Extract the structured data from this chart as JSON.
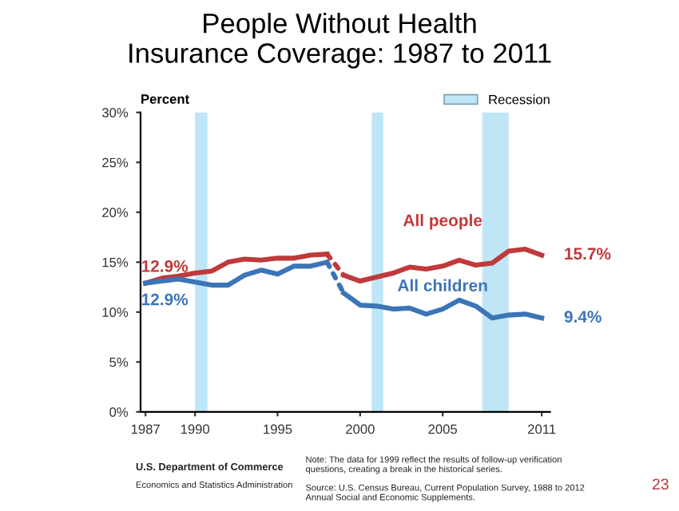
{
  "chart_data": {
    "type": "line",
    "title": "People Without Health\nInsurance Coverage: 1987 to 2011",
    "ylabel": "Percent",
    "series": [
      {
        "color": "#c0393b",
        "x": [
          1987,
          1988,
          1989,
          1990,
          1991,
          1992,
          1993,
          1994,
          1995,
          1996,
          1997,
          1998
        ],
        "values": [
          12.9,
          13.4,
          13.6,
          13.9,
          14.1,
          15.0,
          15.3,
          15.2,
          15.4,
          15.4,
          15.7,
          15.8
        ],
        "value_labels": [
          "12.9%",
          null,
          null,
          null,
          null,
          null,
          null,
          null,
          null,
          null,
          null,
          null
        ]
      },
      {
        "color": "#c0393b",
        "x": [
          1998,
          1999
        ],
        "values": [
          15.8,
          13.7
        ],
        "line_style": "dotted"
      },
      {
        "name": "All people",
        "color": "#c0393b",
        "x": [
          1999,
          2000,
          2001,
          2002,
          2003,
          2004,
          2005,
          2006,
          2007,
          2008,
          2009,
          2010,
          2011
        ],
        "values": [
          13.7,
          13.1,
          13.5,
          13.9,
          14.5,
          14.3,
          14.6,
          15.2,
          14.7,
          14.9,
          16.1,
          16.3,
          15.7
        ],
        "value_labels": [
          null,
          null,
          null,
          null,
          null,
          null,
          null,
          null,
          null,
          null,
          null,
          null,
          "15.7%"
        ]
      },
      {
        "color": "#3c74b8",
        "x": [
          1987,
          1988,
          1989,
          1990,
          1991,
          1992,
          1993,
          1994,
          1995,
          1996,
          1997,
          1998
        ],
        "values": [
          12.9,
          13.1,
          13.3,
          13.0,
          12.7,
          12.7,
          13.7,
          14.2,
          13.8,
          14.6,
          14.6,
          15.0
        ],
        "value_labels": [
          "12.9%",
          null,
          null,
          null,
          null,
          null,
          null,
          null,
          null,
          null,
          null,
          null
        ]
      },
      {
        "color": "#3c74b8",
        "x": [
          1998,
          1999
        ],
        "values": [
          15.0,
          11.9
        ],
        "line_style": "dotted"
      },
      {
        "name": "All children",
        "color": "#3c74b8",
        "x": [
          1999,
          2000,
          2001,
          2002,
          2003,
          2004,
          2005,
          2006,
          2007,
          2008,
          2009,
          2010,
          2011
        ],
        "values": [
          11.9,
          10.7,
          10.6,
          10.3,
          10.4,
          9.8,
          10.3,
          11.2,
          10.6,
          9.4,
          9.7,
          9.8,
          9.4
        ],
        "value_labels": [
          null,
          null,
          null,
          null,
          null,
          null,
          null,
          null,
          null,
          null,
          null,
          null,
          "9.4%"
        ]
      }
    ],
    "line_style": "solid",
    "marker": "none",
    "xlim": [
      1986.7,
      2011.5
    ],
    "xticks": [
      1987,
      1990,
      1995,
      2000,
      2005,
      2011
    ],
    "ylim": [
      0,
      30
    ],
    "yticks": [
      {
        "value": 0,
        "label": "0%"
      },
      {
        "value": 5,
        "label": "5%"
      },
      {
        "value": 10,
        "label": "10%"
      },
      {
        "value": 15,
        "label": "15%"
      },
      {
        "value": 20,
        "label": "20%"
      },
      {
        "value": 25,
        "label": "25%"
      },
      {
        "value": 30,
        "label": "30%"
      }
    ],
    "bands": [
      {
        "axis": "x",
        "from": 1990.0,
        "to": 1990.75,
        "label": "Recession",
        "color": "#bfe6f7"
      },
      {
        "axis": "x",
        "from": 2000.7,
        "to": 2001.4,
        "color": "#bfe6f7"
      },
      {
        "axis": "x",
        "from": 2007.4,
        "to": 2009.0,
        "color": "#bfe6f7"
      }
    ],
    "legend": "top right",
    "grid": false,
    "annotations": [
      "U.S. Department of Commerce",
      "Economics and Statistics Administration",
      "Note: The data for 1999 reflect the results of follow-up verification\nquestions, creating a break in the historical series.",
      "Source: U.S. Census Bureau, Current Population Survey, 1988 to 2012\nAnnual Social and Economic Supplements.",
      "23"
    ]
  }
}
